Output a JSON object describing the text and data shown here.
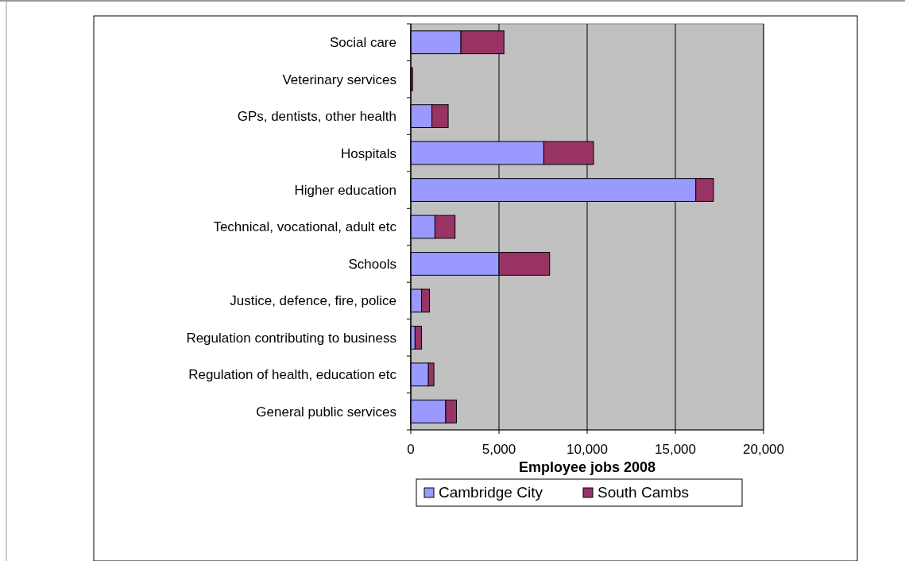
{
  "chart_data": {
    "type": "bar",
    "orientation": "horizontal",
    "stacked": true,
    "xlabel": "Employee jobs 2008",
    "categories": [
      "Social care",
      "Veterinary services",
      "GPs, dentists, other health",
      "Hospitals",
      "Higher education",
      "Technical, vocational, adult etc",
      "Schools",
      "Justice, defence, fire, police",
      "Regulation contributing to business",
      "Regulation of health, education etc",
      "General public services"
    ],
    "series": [
      {
        "name": "Cambridge City",
        "color": "#9999ff",
        "values": [
          2840,
          null,
          1200,
          7540,
          16160,
          1370,
          5000,
          610,
          240,
          1000,
          1980
        ]
      },
      {
        "name": "South Cambs",
        "color": "#993366",
        "values": [
          2440,
          100,
          920,
          2820,
          1000,
          1140,
          2870,
          450,
          370,
          310,
          610
        ]
      }
    ],
    "xlim": [
      0,
      20000
    ],
    "xticks": [
      {
        "value": 0,
        "label": "0"
      },
      {
        "value": 5000,
        "label": "5,000"
      },
      {
        "value": 10000,
        "label": "10,000"
      },
      {
        "value": 15000,
        "label": "15,000"
      },
      {
        "value": 20000,
        "label": "20,000"
      }
    ],
    "grid": "x",
    "legend": "bottom"
  }
}
